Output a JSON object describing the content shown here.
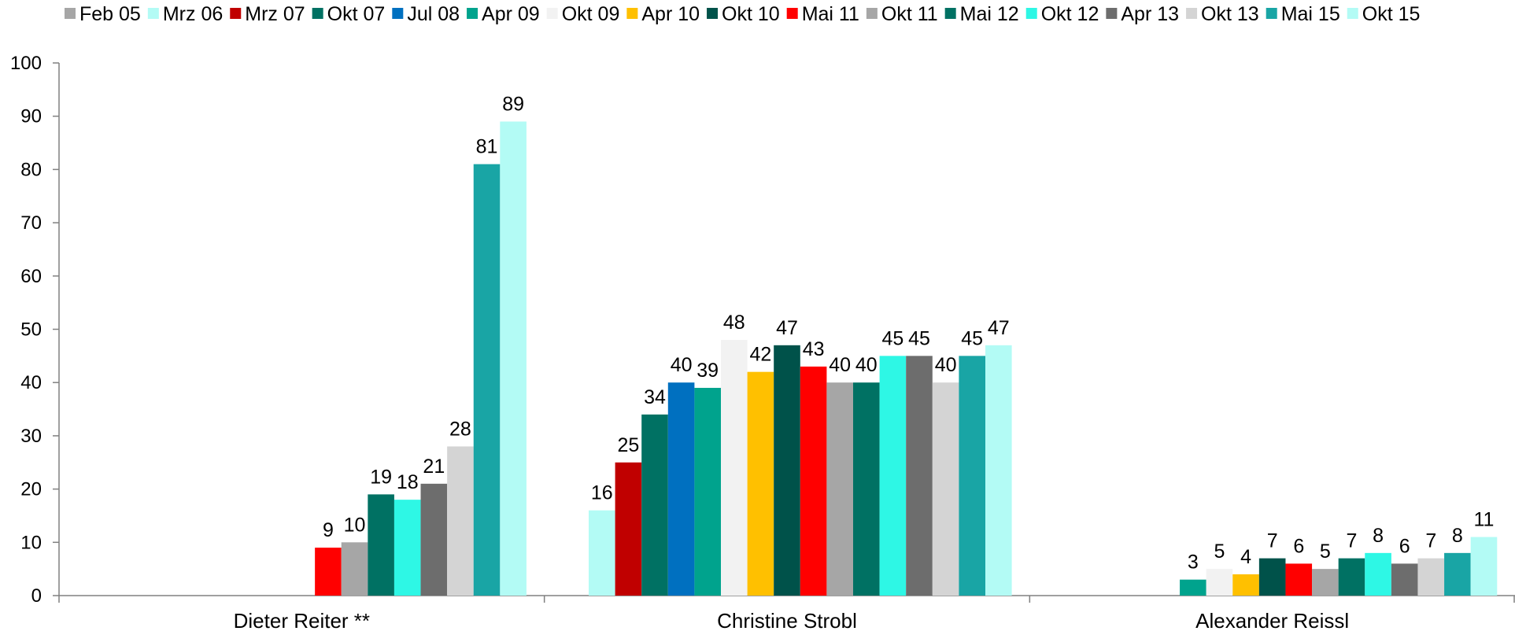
{
  "chart_data": {
    "type": "bar",
    "title": "",
    "xlabel": "",
    "ylabel": "",
    "ylim": [
      0,
      100
    ],
    "yticks": [
      0,
      10,
      20,
      30,
      40,
      50,
      60,
      70,
      80,
      90,
      100
    ],
    "grid": false,
    "legend_position": "top",
    "categories": [
      "Dieter Reiter **",
      "Christine Strobl",
      "Alexander Reissl"
    ],
    "series": [
      {
        "name": "Feb 05",
        "color": "#a6a6a6",
        "values": [
          null,
          null,
          null
        ]
      },
      {
        "name": "Mrz 06",
        "color": "#b3fbf5",
        "values": [
          null,
          16,
          null
        ]
      },
      {
        "name": "Mrz 07",
        "color": "#c00000",
        "values": [
          null,
          25,
          null
        ]
      },
      {
        "name": "Okt 07",
        "color": "#007163",
        "values": [
          null,
          34,
          null
        ]
      },
      {
        "name": "Jul 08",
        "color": "#0070c0",
        "values": [
          null,
          40,
          null
        ]
      },
      {
        "name": "Apr 09",
        "color": "#00a38d",
        "values": [
          null,
          39,
          3
        ]
      },
      {
        "name": "Okt 09",
        "color": "#f2f2f2",
        "values": [
          null,
          48,
          5
        ]
      },
      {
        "name": "Apr 10",
        "color": "#ffc000",
        "values": [
          null,
          42,
          4
        ]
      },
      {
        "name": "Okt 10",
        "color": "#00524a",
        "values": [
          null,
          47,
          7
        ]
      },
      {
        "name": "Mai 11",
        "color": "#ff0000",
        "values": [
          9,
          43,
          6
        ]
      },
      {
        "name": "Okt 11",
        "color": "#a6a6a6",
        "values": [
          10,
          40,
          5
        ]
      },
      {
        "name": "Mai 12",
        "color": "#007163",
        "values": [
          19,
          40,
          7
        ]
      },
      {
        "name": "Okt 12",
        "color": "#2ef7e5",
        "values": [
          18,
          45,
          8
        ]
      },
      {
        "name": "Apr 13",
        "color": "#6d6d6d",
        "values": [
          21,
          45,
          6
        ]
      },
      {
        "name": "Okt 13",
        "color": "#d4d4d4",
        "values": [
          28,
          40,
          7
        ]
      },
      {
        "name": "Mai 15",
        "color": "#19a5a5",
        "values": [
          81,
          45,
          8
        ]
      },
      {
        "name": "Okt 15",
        "color": "#b3fbf5",
        "values": [
          89,
          47,
          11
        ]
      }
    ]
  }
}
